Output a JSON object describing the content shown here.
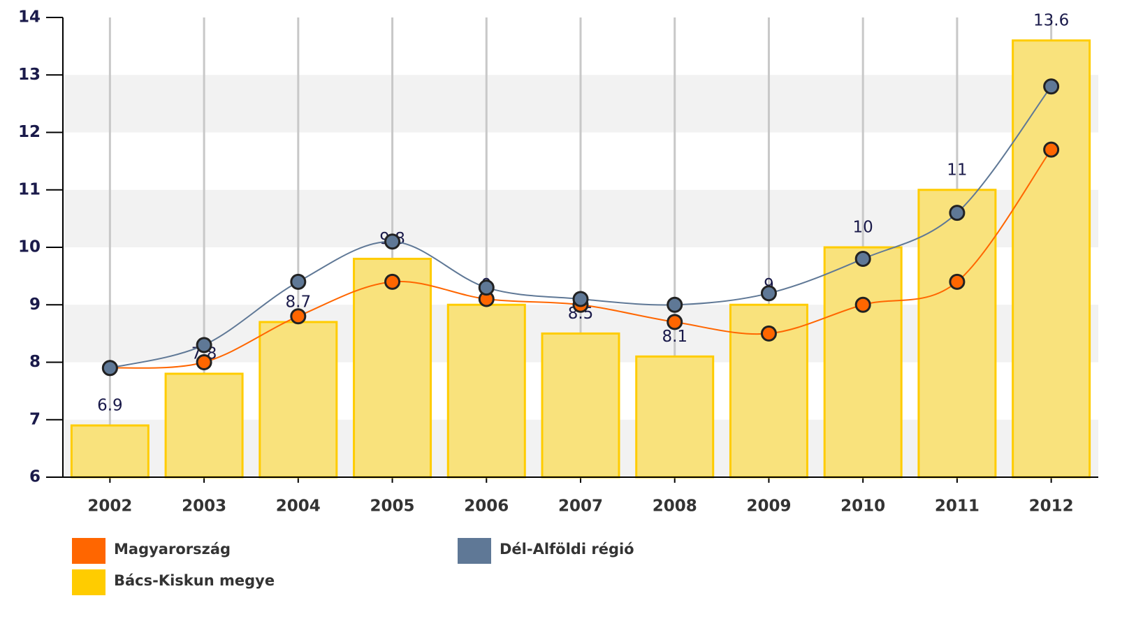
{
  "chart_data": {
    "type": "bar",
    "categories": [
      "2002",
      "2003",
      "2004",
      "2005",
      "2006",
      "2007",
      "2008",
      "2009",
      "2010",
      "2011",
      "2012"
    ],
    "ylim": [
      6,
      14
    ],
    "yticks": [
      6,
      7,
      8,
      9,
      10,
      11,
      12,
      13,
      14
    ],
    "grid": true,
    "series": [
      {
        "name": "Magyarország",
        "type": "line",
        "color": "#ff6600",
        "values": [
          7.9,
          8.0,
          8.8,
          9.4,
          9.1,
          9.0,
          8.7,
          8.5,
          9.0,
          9.4,
          11.7
        ]
      },
      {
        "name": "Dél-Alföldi régió",
        "type": "line",
        "color": "#5f7896",
        "values": [
          7.9,
          8.3,
          9.4,
          10.1,
          9.3,
          9.1,
          9.0,
          9.2,
          9.8,
          10.6,
          12.8
        ]
      },
      {
        "name": "Bács-Kiskun megye",
        "type": "bar",
        "color": "#ffcc00",
        "values": [
          6.9,
          7.8,
          8.7,
          9.8,
          9,
          8.5,
          8.1,
          9,
          10,
          11,
          13.6
        ]
      }
    ]
  }
}
